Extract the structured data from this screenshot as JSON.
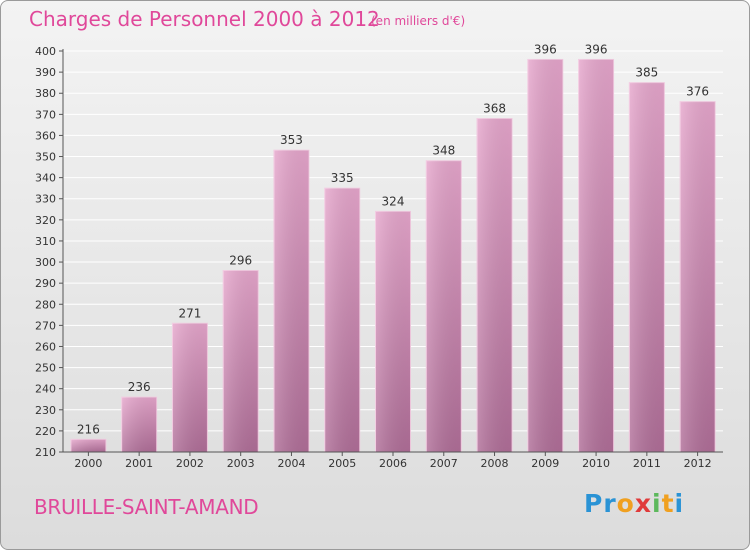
{
  "header": {
    "title": "Charges de Personnel 2000 à 2012",
    "subtitle": "(en milliers d'€)"
  },
  "footer": {
    "commune": "BRUILLE-SAINT-AMAND",
    "logo": [
      "P",
      "r",
      "o",
      "x",
      "i",
      "t",
      "i"
    ],
    "logo_colors": [
      "#2a93d5",
      "#2a93d5",
      "#f0a020",
      "#e03a3a",
      "#5cb85c",
      "#f0a020",
      "#2a93d5"
    ]
  },
  "colors": {
    "title": "#e0489a",
    "bar_top": "#e6a6cc",
    "bar_bottom": "#b06e98",
    "grid": "#ffffff"
  },
  "chart_data": {
    "type": "bar",
    "title": "Charges de Personnel 2000 à 2012",
    "subtitle": "(en milliers d'€)",
    "categories": [
      "2000",
      "2001",
      "2002",
      "2003",
      "2004",
      "2005",
      "2006",
      "2007",
      "2008",
      "2009",
      "2010",
      "2011",
      "2012"
    ],
    "values": [
      216,
      236,
      271,
      296,
      353,
      335,
      324,
      348,
      368,
      396,
      396,
      385,
      376
    ],
    "ylim": [
      210,
      400
    ],
    "ytick_step": 10,
    "grid": true
  }
}
